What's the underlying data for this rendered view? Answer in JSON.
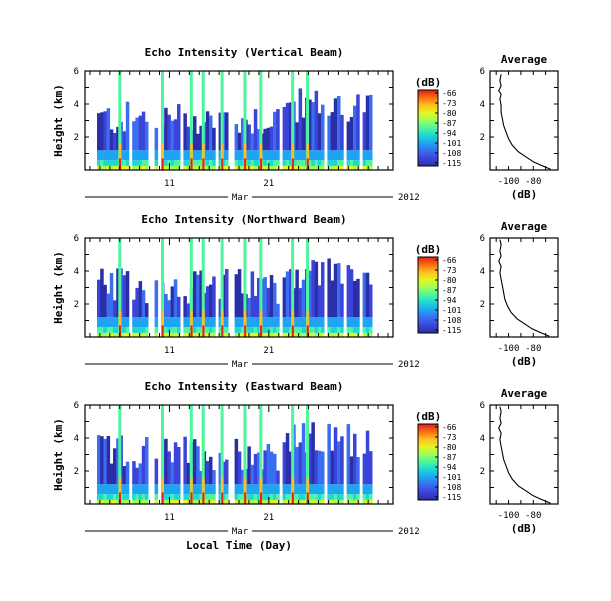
{
  "figure": {
    "xlabel": "Local Time (Day)",
    "month": "Mar",
    "year": "2012"
  },
  "colorbar": {
    "unit": "(dB)",
    "ticks": [
      "-66",
      "-73",
      "-80",
      "-87",
      "-94",
      "-101",
      "-108",
      "-115"
    ],
    "colors": [
      "#e0201b",
      "#f96d10",
      "#ffc01f",
      "#e6f522",
      "#9bff5a",
      "#4ef59f",
      "#1ad8d4",
      "#1fa4f2",
      "#3a6df0",
      "#3b44d8",
      "#2a2fa8"
    ]
  },
  "chart_data": [
    {
      "type": "heatmap",
      "title": "Echo Intensity (Vertical Beam)",
      "ylabel": "Height (km)",
      "ylim": [
        0,
        6
      ],
      "yticks": [
        "6",
        "4",
        "2"
      ],
      "xticks": [
        "11",
        "21"
      ],
      "x_range_days": [
        2.5,
        33.5
      ],
      "profile": {
        "title": "Average",
        "xlabel": "(dB)",
        "xlim": [
          -115,
          -60
        ],
        "xticks": [
          "-100",
          "-80"
        ],
        "yticks": [
          "6",
          "4",
          "2"
        ],
        "points": [
          [
            -66,
            0.05
          ],
          [
            -74,
            0.3
          ],
          [
            -80,
            0.5
          ],
          [
            -86,
            0.8
          ],
          [
            -92,
            1.1
          ],
          [
            -97,
            1.5
          ],
          [
            -100,
            1.9
          ],
          [
            -102,
            2.3
          ],
          [
            -104,
            2.7
          ],
          [
            -105,
            3.1
          ],
          [
            -106,
            3.5
          ],
          [
            -106,
            3.9
          ],
          [
            -107,
            4.3
          ],
          [
            -106,
            4.6
          ],
          [
            -108,
            4.8
          ],
          [
            -106,
            5.1
          ],
          [
            -107,
            5.4
          ],
          [
            -106,
            5.8
          ]
        ]
      }
    },
    {
      "type": "heatmap",
      "title": "Echo Intensity (Northward Beam)",
      "ylabel": "Height (km)",
      "ylim": [
        0,
        6
      ],
      "yticks": [
        "6",
        "4",
        "2"
      ],
      "xticks": [
        "11",
        "21"
      ],
      "x_range_days": [
        2.5,
        33.5
      ],
      "profile": {
        "title": "Average",
        "xlabel": "(dB)",
        "xlim": [
          -115,
          -60
        ],
        "xticks": [
          "-100",
          "-80"
        ],
        "yticks": [
          "6",
          "4",
          "2"
        ],
        "points": [
          [
            -67,
            0.05
          ],
          [
            -75,
            0.3
          ],
          [
            -81,
            0.5
          ],
          [
            -87,
            0.8
          ],
          [
            -93,
            1.1
          ],
          [
            -98,
            1.5
          ],
          [
            -101,
            1.9
          ],
          [
            -103,
            2.3
          ],
          [
            -104,
            2.7
          ],
          [
            -105,
            3.1
          ],
          [
            -106,
            3.5
          ],
          [
            -107,
            3.9
          ],
          [
            -106,
            4.3
          ],
          [
            -108,
            4.6
          ],
          [
            -106,
            4.9
          ],
          [
            -107,
            5.2
          ],
          [
            -106,
            5.6
          ],
          [
            -107,
            5.9
          ]
        ]
      }
    },
    {
      "type": "heatmap",
      "title": "Echo Intensity (Eastward Beam)",
      "ylabel": "Height (km)",
      "ylim": [
        0,
        6
      ],
      "yticks": [
        "6",
        "4",
        "2"
      ],
      "xticks": [
        "11",
        "21"
      ],
      "x_range_days": [
        2.5,
        33.5
      ],
      "profile": {
        "title": "Average",
        "xlabel": "(dB)",
        "xlim": [
          -115,
          -60
        ],
        "xticks": [
          "-100",
          "-80"
        ],
        "yticks": [
          "6",
          "4",
          "2"
        ],
        "points": [
          [
            -66,
            0.05
          ],
          [
            -74,
            0.3
          ],
          [
            -80,
            0.5
          ],
          [
            -86,
            0.8
          ],
          [
            -92,
            1.1
          ],
          [
            -97,
            1.5
          ],
          [
            -100,
            1.9
          ],
          [
            -102,
            2.3
          ],
          [
            -104,
            2.7
          ],
          [
            -105,
            3.1
          ],
          [
            -106,
            3.5
          ],
          [
            -107,
            3.9
          ],
          [
            -106,
            4.3
          ],
          [
            -108,
            4.6
          ],
          [
            -106,
            4.9
          ],
          [
            -107,
            5.2
          ],
          [
            -106,
            5.6
          ],
          [
            -107,
            5.9
          ]
        ]
      }
    }
  ]
}
